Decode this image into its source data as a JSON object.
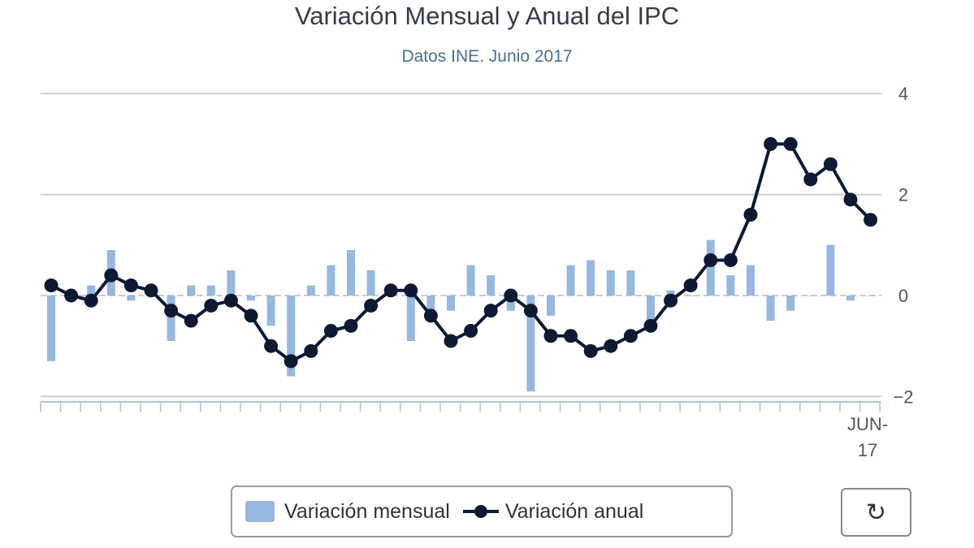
{
  "chart_data": {
    "type": "bar+line",
    "title": "Variación Mensual y Anual del IPC",
    "subtitle": "Datos INE. Junio 2017",
    "ylim": [
      -2,
      4
    ],
    "yticks": [
      "4",
      "2",
      "0",
      "−2"
    ],
    "ytick_values": [
      4,
      2,
      0,
      -2
    ],
    "x_last_label": [
      "JUN-",
      "17"
    ],
    "legend": {
      "placement": "bottom-center",
      "entries": [
        "Variación mensual",
        "Variación anual"
      ]
    },
    "colors": {
      "mensual": "#94b8e0",
      "anual": "#0e1a33"
    },
    "series": [
      {
        "name": "Variación mensual",
        "type": "bar",
        "values": [
          -1.3,
          0.0,
          0.2,
          0.9,
          -0.1,
          0.0,
          -0.9,
          0.2,
          0.2,
          0.5,
          -0.1,
          -0.6,
          -1.6,
          0.2,
          0.6,
          0.9,
          0.5,
          0.0,
          -0.9,
          -0.3,
          -0.3,
          0.6,
          0.4,
          -0.3,
          -1.9,
          -0.4,
          0.6,
          0.7,
          0.5,
          0.5,
          -0.7,
          0.1,
          0.0,
          1.1,
          0.4,
          0.6,
          -0.5,
          -0.3,
          0.0,
          1.0,
          -0.1,
          0.0
        ]
      },
      {
        "name": "Variación anual",
        "type": "line",
        "values": [
          0.2,
          0.0,
          -0.1,
          0.4,
          0.2,
          0.1,
          -0.3,
          -0.5,
          -0.2,
          -0.1,
          -0.4,
          -1.0,
          -1.3,
          -1.1,
          -0.7,
          -0.6,
          -0.2,
          0.1,
          0.1,
          -0.4,
          -0.9,
          -0.7,
          -0.3,
          0.0,
          -0.3,
          -0.8,
          -0.8,
          -1.1,
          -1.0,
          -0.8,
          -0.6,
          -0.1,
          0.2,
          0.7,
          0.7,
          1.6,
          3.0,
          3.0,
          2.3,
          2.6,
          1.9,
          1.5
        ]
      }
    ]
  },
  "legend": {
    "mensual": "Variación mensual",
    "anual": "Variación anual"
  },
  "refresh_icon": "refresh-icon"
}
